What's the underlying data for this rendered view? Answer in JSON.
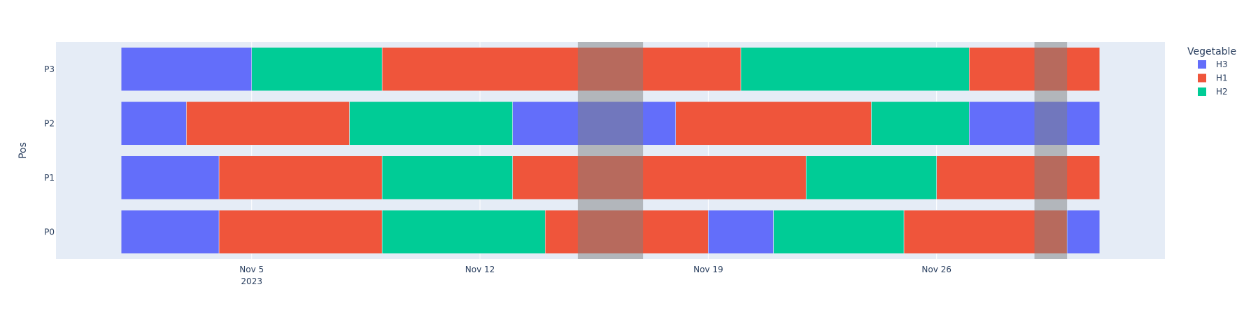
{
  "chart_data": {
    "type": "timeline",
    "ylabel": "Pos",
    "xlabel": "",
    "categories": [
      "P0",
      "P1",
      "P2",
      "P3"
    ],
    "x_range": [
      "2023-10-30",
      "2023-12-03"
    ],
    "x_ticks": [
      {
        "date": "2023-11-05",
        "label": "Nov 5",
        "sublabel": "2023"
      },
      {
        "date": "2023-11-12",
        "label": "Nov 12",
        "sublabel": ""
      },
      {
        "date": "2023-11-19",
        "label": "Nov 19",
        "sublabel": ""
      },
      {
        "date": "2023-11-26",
        "label": "Nov 26",
        "sublabel": ""
      }
    ],
    "legend": {
      "title": "Vegetable",
      "position": "top-right",
      "items": [
        {
          "name": "H3",
          "color": "#636efa"
        },
        {
          "name": "H1",
          "color": "#ef553b"
        },
        {
          "name": "H2",
          "color": "#00cc96"
        }
      ]
    },
    "tasks": [
      {
        "pos": "P0",
        "veg": "H3",
        "start": "2023-11-01",
        "end": "2023-11-04"
      },
      {
        "pos": "P0",
        "veg": "H1",
        "start": "2023-11-04",
        "end": "2023-11-09"
      },
      {
        "pos": "P0",
        "veg": "H2",
        "start": "2023-11-09",
        "end": "2023-11-14"
      },
      {
        "pos": "P0",
        "veg": "H1",
        "start": "2023-11-14",
        "end": "2023-11-19"
      },
      {
        "pos": "P0",
        "veg": "H3",
        "start": "2023-11-19",
        "end": "2023-11-21"
      },
      {
        "pos": "P0",
        "veg": "H2",
        "start": "2023-11-21",
        "end": "2023-11-25"
      },
      {
        "pos": "P0",
        "veg": "H1",
        "start": "2023-11-25",
        "end": "2023-11-30"
      },
      {
        "pos": "P0",
        "veg": "H3",
        "start": "2023-11-30",
        "end": "2023-12-01"
      },
      {
        "pos": "P1",
        "veg": "H3",
        "start": "2023-11-01",
        "end": "2023-11-04"
      },
      {
        "pos": "P1",
        "veg": "H1",
        "start": "2023-11-04",
        "end": "2023-11-09"
      },
      {
        "pos": "P1",
        "veg": "H2",
        "start": "2023-11-09",
        "end": "2023-11-13"
      },
      {
        "pos": "P1",
        "veg": "H1",
        "start": "2023-11-13",
        "end": "2023-11-22"
      },
      {
        "pos": "P1",
        "veg": "H2",
        "start": "2023-11-22",
        "end": "2023-11-26"
      },
      {
        "pos": "P1",
        "veg": "H1",
        "start": "2023-11-26",
        "end": "2023-12-01"
      },
      {
        "pos": "P2",
        "veg": "H3",
        "start": "2023-11-01",
        "end": "2023-11-03"
      },
      {
        "pos": "P2",
        "veg": "H1",
        "start": "2023-11-03",
        "end": "2023-11-08"
      },
      {
        "pos": "P2",
        "veg": "H2",
        "start": "2023-11-08",
        "end": "2023-11-13"
      },
      {
        "pos": "P2",
        "veg": "H3",
        "start": "2023-11-13",
        "end": "2023-11-18"
      },
      {
        "pos": "P2",
        "veg": "H1",
        "start": "2023-11-18",
        "end": "2023-11-24"
      },
      {
        "pos": "P2",
        "veg": "H2",
        "start": "2023-11-24",
        "end": "2023-11-27"
      },
      {
        "pos": "P2",
        "veg": "H3",
        "start": "2023-11-27",
        "end": "2023-12-01"
      },
      {
        "pos": "P3",
        "veg": "H3",
        "start": "2023-11-01",
        "end": "2023-11-05"
      },
      {
        "pos": "P3",
        "veg": "H2",
        "start": "2023-11-05",
        "end": "2023-11-09"
      },
      {
        "pos": "P3",
        "veg": "H1",
        "start": "2023-11-09",
        "end": "2023-11-20"
      },
      {
        "pos": "P3",
        "veg": "H2",
        "start": "2023-11-20",
        "end": "2023-11-27"
      },
      {
        "pos": "P3",
        "veg": "H1",
        "start": "2023-11-27",
        "end": "2023-12-01"
      }
    ],
    "shaded_ranges": [
      {
        "start": "2023-11-15",
        "end": "2023-11-17",
        "color": "#808080",
        "opacity": 0.5
      },
      {
        "start": "2023-11-29",
        "end": "2023-11-30",
        "color": "#808080",
        "opacity": 0.5
      }
    ],
    "grid": true,
    "plot_bgcolor": "#e5ecf6",
    "grid_color": "#ffffff"
  }
}
